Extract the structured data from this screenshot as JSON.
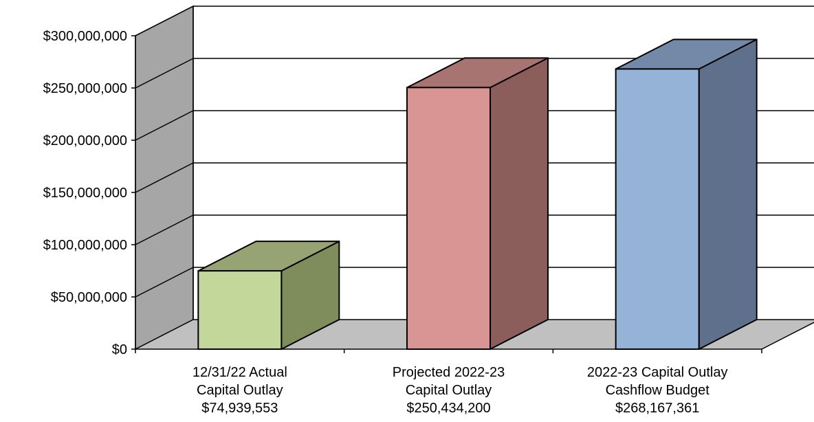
{
  "chart_data": {
    "type": "bar",
    "title": "",
    "xlabel": "",
    "ylabel": "",
    "ylim": [
      0,
      300000000
    ],
    "yticks": [
      {
        "value": 0,
        "label": "$0"
      },
      {
        "value": 50000000,
        "label": "$50,000,000"
      },
      {
        "value": 100000000,
        "label": "$100,000,000"
      },
      {
        "value": 150000000,
        "label": "$150,000,000"
      },
      {
        "value": 200000000,
        "label": "$200,000,000"
      },
      {
        "value": 250000000,
        "label": "$250,000,000"
      },
      {
        "value": 300000000,
        "label": "$300,000,000"
      }
    ],
    "grid": true,
    "style": "3d-column",
    "bars": [
      {
        "category": [
          "12/31/22 Actual",
          "Capital Outlay",
          "$74,939,553"
        ],
        "value": 74939553,
        "colors": {
          "front": "#c4d79b",
          "top": "#97a373",
          "side": "#7f8c5c"
        }
      },
      {
        "category": [
          "Projected 2022-23",
          "Capital Outlay",
          "$250,434,200"
        ],
        "value": 250434200,
        "colors": {
          "front": "#d99594",
          "top": "#a87472",
          "side": "#8b5e5c"
        }
      },
      {
        "category": [
          "2022-23 Capital Outlay",
          "Cashflow Budget",
          "$268,167,361"
        ],
        "value": 268167361,
        "colors": {
          "front": "#95b3d7",
          "top": "#7489a7",
          "side": "#5f708c"
        }
      }
    ]
  }
}
